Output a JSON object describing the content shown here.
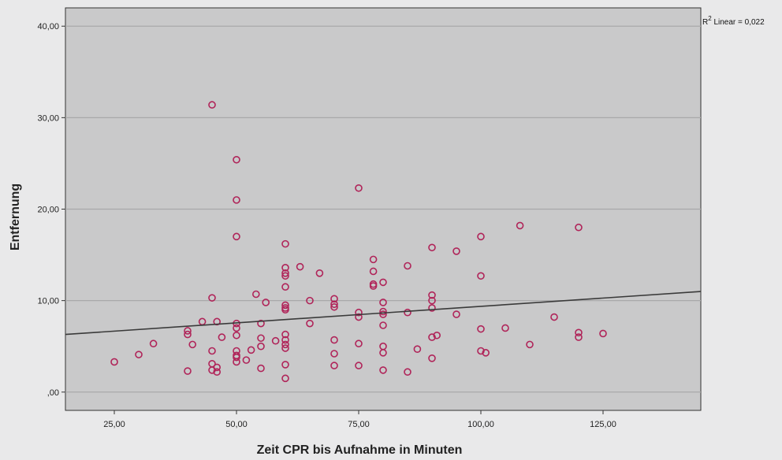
{
  "chart_data": {
    "type": "scatter",
    "title": "",
    "xlabel": "Zeit CPR bis Aufnahme in Minuten",
    "ylabel": "Entfernung",
    "xlim": [
      15,
      145
    ],
    "ylim": [
      -2,
      42
    ],
    "x_ticks": [
      25,
      50,
      75,
      100,
      125
    ],
    "x_tick_labels": [
      "25,00",
      "50,00",
      "75,00",
      "100,00",
      "125,00"
    ],
    "y_ticks": [
      0,
      10,
      20,
      30,
      40
    ],
    "y_tick_labels": [
      ",00",
      "10,00",
      "20,00",
      "30,00",
      "40,00"
    ],
    "grid": "horizontal",
    "colors": {
      "plot_bg": "#c9c9ca",
      "page_bg": "#e9e9ea",
      "marker": "#b02459",
      "fit_line": "#3a3a3a",
      "grid": "#a9a9aa"
    },
    "annotation": {
      "text_prefix": "R",
      "text_sup": "2",
      "text_rest": " Linear = 0,022"
    },
    "fit_line": {
      "x": [
        15,
        145
      ],
      "y": [
        6.3,
        11.0
      ]
    },
    "points": [
      [
        25,
        3.3
      ],
      [
        30,
        4.1
      ],
      [
        33,
        5.3
      ],
      [
        40,
        6.7
      ],
      [
        40,
        6.3
      ],
      [
        40,
        2.3
      ],
      [
        41,
        5.2
      ],
      [
        43,
        7.7
      ],
      [
        45,
        31.4
      ],
      [
        45,
        10.3
      ],
      [
        45,
        4.5
      ],
      [
        45,
        3.1
      ],
      [
        45,
        2.4
      ],
      [
        46,
        7.7
      ],
      [
        46,
        2.7
      ],
      [
        46,
        2.2
      ],
      [
        47,
        6.0
      ],
      [
        50,
        25.4
      ],
      [
        50,
        21.0
      ],
      [
        50,
        17.0
      ],
      [
        50,
        7.5
      ],
      [
        50,
        7.0
      ],
      [
        50,
        6.2
      ],
      [
        50,
        4.5
      ],
      [
        50,
        4.0
      ],
      [
        50,
        3.8
      ],
      [
        50,
        3.3
      ],
      [
        52,
        3.5
      ],
      [
        53,
        4.6
      ],
      [
        54,
        10.7
      ],
      [
        55,
        7.5
      ],
      [
        55,
        5.9
      ],
      [
        55,
        5.0
      ],
      [
        55,
        2.6
      ],
      [
        56,
        9.8
      ],
      [
        58,
        5.6
      ],
      [
        60,
        16.2
      ],
      [
        60,
        13.6
      ],
      [
        60,
        13.0
      ],
      [
        60,
        12.7
      ],
      [
        60,
        11.5
      ],
      [
        60,
        9.5
      ],
      [
        60,
        9.2
      ],
      [
        60,
        9.0
      ],
      [
        60,
        6.3
      ],
      [
        60,
        5.7
      ],
      [
        60,
        5.2
      ],
      [
        60,
        4.8
      ],
      [
        60,
        3.0
      ],
      [
        60,
        1.5
      ],
      [
        63,
        13.7
      ],
      [
        65,
        10.0
      ],
      [
        65,
        7.5
      ],
      [
        67,
        13.0
      ],
      [
        70,
        10.2
      ],
      [
        70,
        9.6
      ],
      [
        70,
        9.3
      ],
      [
        70,
        5.7
      ],
      [
        70,
        4.2
      ],
      [
        70,
        2.9
      ],
      [
        75,
        22.3
      ],
      [
        75,
        8.7
      ],
      [
        75,
        8.2
      ],
      [
        75,
        5.3
      ],
      [
        75,
        2.9
      ],
      [
        78,
        14.5
      ],
      [
        78,
        13.2
      ],
      [
        78,
        11.8
      ],
      [
        78,
        11.6
      ],
      [
        80,
        12.0
      ],
      [
        80,
        9.8
      ],
      [
        80,
        8.8
      ],
      [
        80,
        8.5
      ],
      [
        80,
        7.3
      ],
      [
        80,
        5.0
      ],
      [
        80,
        4.3
      ],
      [
        80,
        2.4
      ],
      [
        85,
        13.8
      ],
      [
        85,
        8.7
      ],
      [
        85,
        2.2
      ],
      [
        87,
        4.7
      ],
      [
        90,
        15.8
      ],
      [
        90,
        10.6
      ],
      [
        90,
        10.0
      ],
      [
        90,
        9.2
      ],
      [
        90,
        6.0
      ],
      [
        90,
        3.7
      ],
      [
        91,
        6.2
      ],
      [
        95,
        15.4
      ],
      [
        95,
        8.5
      ],
      [
        100,
        17.0
      ],
      [
        100,
        12.7
      ],
      [
        100,
        6.9
      ],
      [
        100,
        4.5
      ],
      [
        101,
        4.3
      ],
      [
        105,
        7.0
      ],
      [
        108,
        18.2
      ],
      [
        110,
        5.2
      ],
      [
        115,
        8.2
      ],
      [
        120,
        18.0
      ],
      [
        120,
        6.5
      ],
      [
        120,
        6.0
      ],
      [
        125,
        6.4
      ]
    ]
  }
}
